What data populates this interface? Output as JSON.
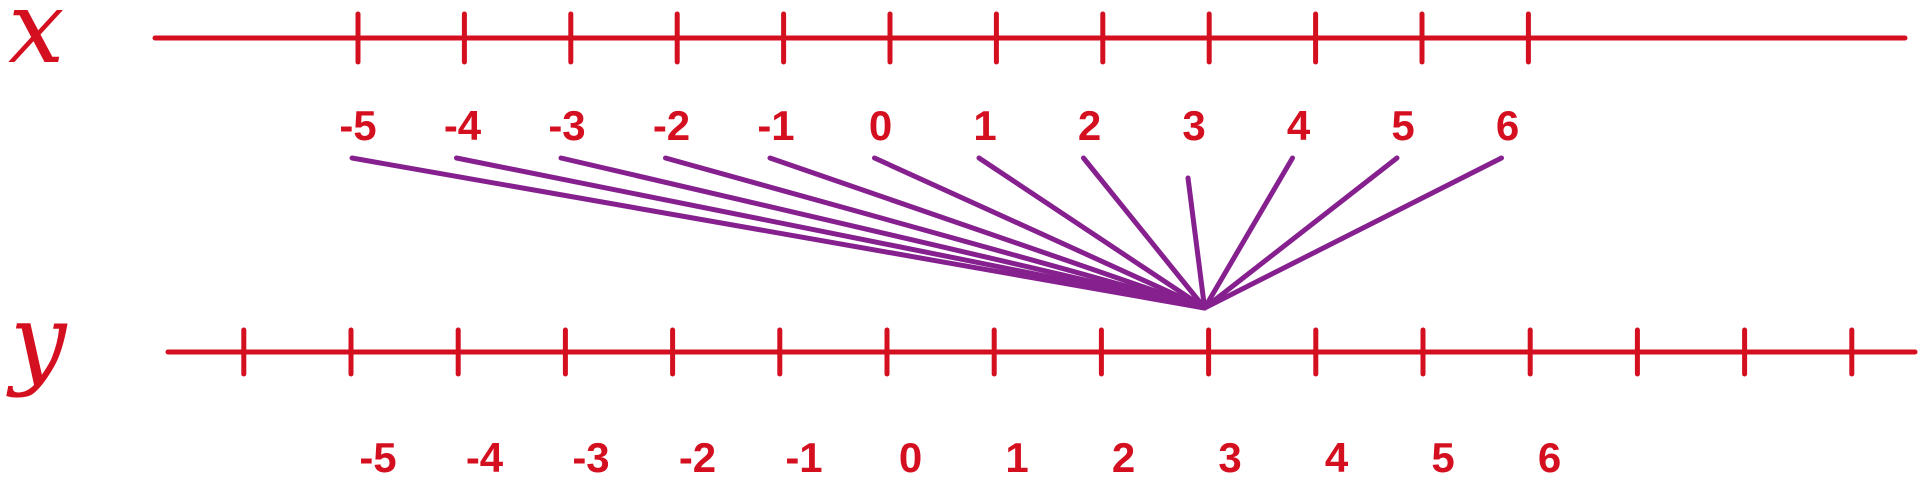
{
  "diagram": {
    "top_axis": {
      "label": "x",
      "numbers": [
        "-5",
        "-4",
        "-3",
        "-2",
        "-1",
        "0",
        "1",
        "2",
        "3",
        "4",
        "5",
        "6"
      ],
      "values": [
        -5,
        -4,
        -3,
        -2,
        -1,
        0,
        1,
        2,
        3,
        4,
        5,
        6
      ]
    },
    "bottom_axis": {
      "label": "y",
      "numbers": [
        "-5",
        "-4",
        "-3",
        "-2",
        "-1",
        "0",
        "1",
        "2",
        "3",
        "4",
        "5",
        "6"
      ],
      "values": [
        -5,
        -4,
        -3,
        -2,
        -1,
        0,
        1,
        2,
        3,
        4,
        5,
        6
      ],
      "extra_ticks_left": 1,
      "extra_ticks_right": 3
    },
    "mapping": {
      "description_values": "every x maps to y = 3",
      "target_value": 3
    },
    "colors": {
      "axes": "#d40f1f",
      "mapping_lines": "#85208e"
    }
  }
}
